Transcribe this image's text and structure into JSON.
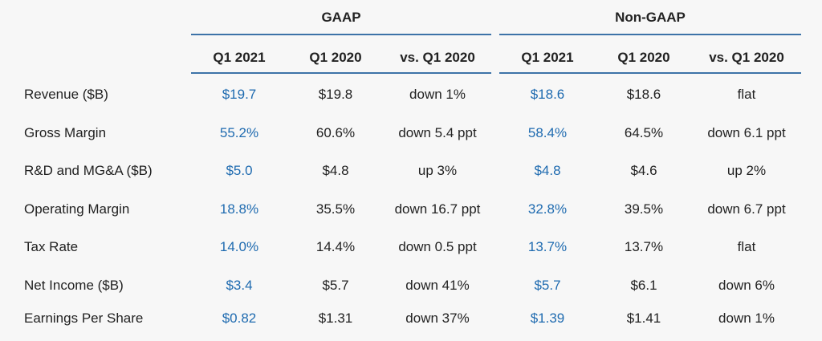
{
  "groups": {
    "gaap": "GAAP",
    "non_gaap": "Non-GAAP"
  },
  "columns": {
    "gaap": [
      "Q1 2021",
      "Q1 2020",
      "vs. Q1 2020"
    ],
    "non_gaap": [
      "Q1 2021",
      "Q1 2020",
      "vs. Q1 2020"
    ]
  },
  "rows": [
    {
      "label": "Revenue ($B)",
      "gaap": [
        "$19.7",
        "$19.8",
        "down 1%"
      ],
      "non_gaap": [
        "$18.6",
        "$18.6",
        "flat"
      ]
    },
    {
      "label": "Gross Margin",
      "gaap": [
        "55.2%",
        "60.6%",
        "down 5.4 ppt"
      ],
      "non_gaap": [
        "58.4%",
        "64.5%",
        "down 6.1 ppt"
      ]
    },
    {
      "label": "R&D and MG&A ($B)",
      "gaap": [
        "$5.0",
        "$4.8",
        "up 3%"
      ],
      "non_gaap": [
        "$4.8",
        "$4.6",
        "up 2%"
      ]
    },
    {
      "label": "Operating Margin",
      "gaap": [
        "18.8%",
        "35.5%",
        "down 16.7 ppt"
      ],
      "non_gaap": [
        "32.8%",
        "39.5%",
        "down 6.7 ppt"
      ]
    },
    {
      "label": "Tax Rate",
      "gaap": [
        "14.0%",
        "14.4%",
        "down 0.5 ppt"
      ],
      "non_gaap": [
        "13.7%",
        "13.7%",
        "flat"
      ]
    },
    {
      "label": "Net Income ($B)",
      "gaap": [
        "$3.4",
        "$5.7",
        "down 41%"
      ],
      "non_gaap": [
        "$5.7",
        "$6.1",
        "down 6%"
      ]
    },
    {
      "label": "Earnings Per Share",
      "gaap": [
        "$0.82",
        "$1.31",
        "down 37%"
      ],
      "non_gaap": [
        "$1.39",
        "$1.41",
        "down 1%"
      ]
    }
  ],
  "colors": {
    "highlight": "#1f6bb0",
    "rule": "#3d73a8",
    "text": "#222222",
    "background": "#f7f7f7"
  }
}
